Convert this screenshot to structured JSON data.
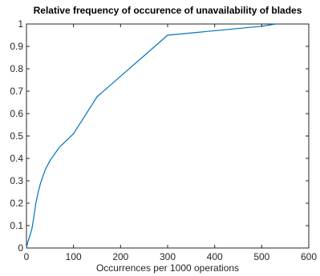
{
  "chart_data": {
    "type": "line",
    "title": "Relative frequency of occurence of unavailability of blades",
    "xlabel": "Occurrences per 1000 operations",
    "ylabel": "",
    "xlim": [
      0,
      600
    ],
    "ylim": [
      0,
      1
    ],
    "xticks": [
      0,
      100,
      200,
      300,
      400,
      500,
      600
    ],
    "yticks": [
      0,
      0.1,
      0.2,
      0.3,
      0.4,
      0.5,
      0.6,
      0.7,
      0.8,
      0.9,
      1
    ],
    "grid": false,
    "line_color": "#0072BD",
    "series": [
      {
        "x": [
          0,
          2,
          5,
          8,
          12,
          15,
          20,
          25,
          30,
          35,
          40,
          50,
          60,
          70,
          80,
          100,
          150,
          300,
          500,
          530
        ],
        "y": [
          0,
          0.02,
          0.04,
          0.06,
          0.09,
          0.13,
          0.2,
          0.25,
          0.29,
          0.32,
          0.35,
          0.39,
          0.42,
          0.45,
          0.47,
          0.51,
          0.675,
          0.95,
          0.99,
          1.0
        ]
      }
    ]
  }
}
